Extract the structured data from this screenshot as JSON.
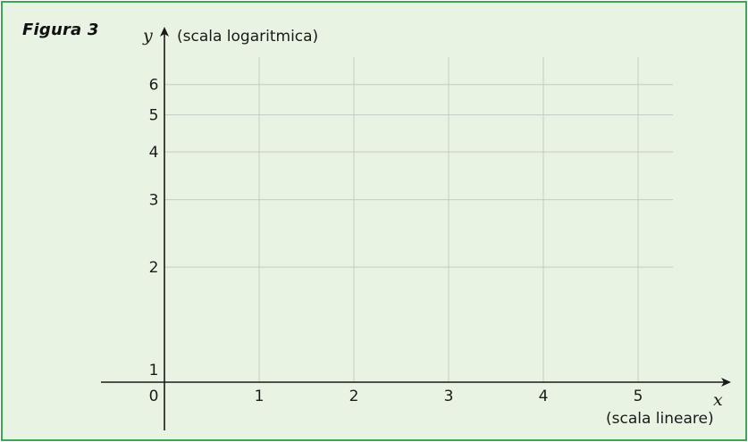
{
  "figure_label": "Figura 3",
  "chart_data": {
    "type": "scatter",
    "title": "",
    "xlabel": "x",
    "xlabel_note": "(scala lineare)",
    "ylabel": "y",
    "ylabel_note": "(scala logaritmica)",
    "x_scale": "linear",
    "y_scale": "log",
    "xlim": [
      0,
      5.4
    ],
    "ylim": [
      1,
      7
    ],
    "x_ticks": [
      1,
      2,
      3,
      4,
      5
    ],
    "x_origin_label": "0",
    "y_ticks": [
      1,
      2,
      3,
      4,
      5,
      6
    ],
    "grid": true,
    "series": [],
    "colors": {
      "frame_border": "#3ea552",
      "background": "#e8f3e3",
      "grid": "#c4ccc6",
      "axis": "#1a1a1a"
    }
  }
}
